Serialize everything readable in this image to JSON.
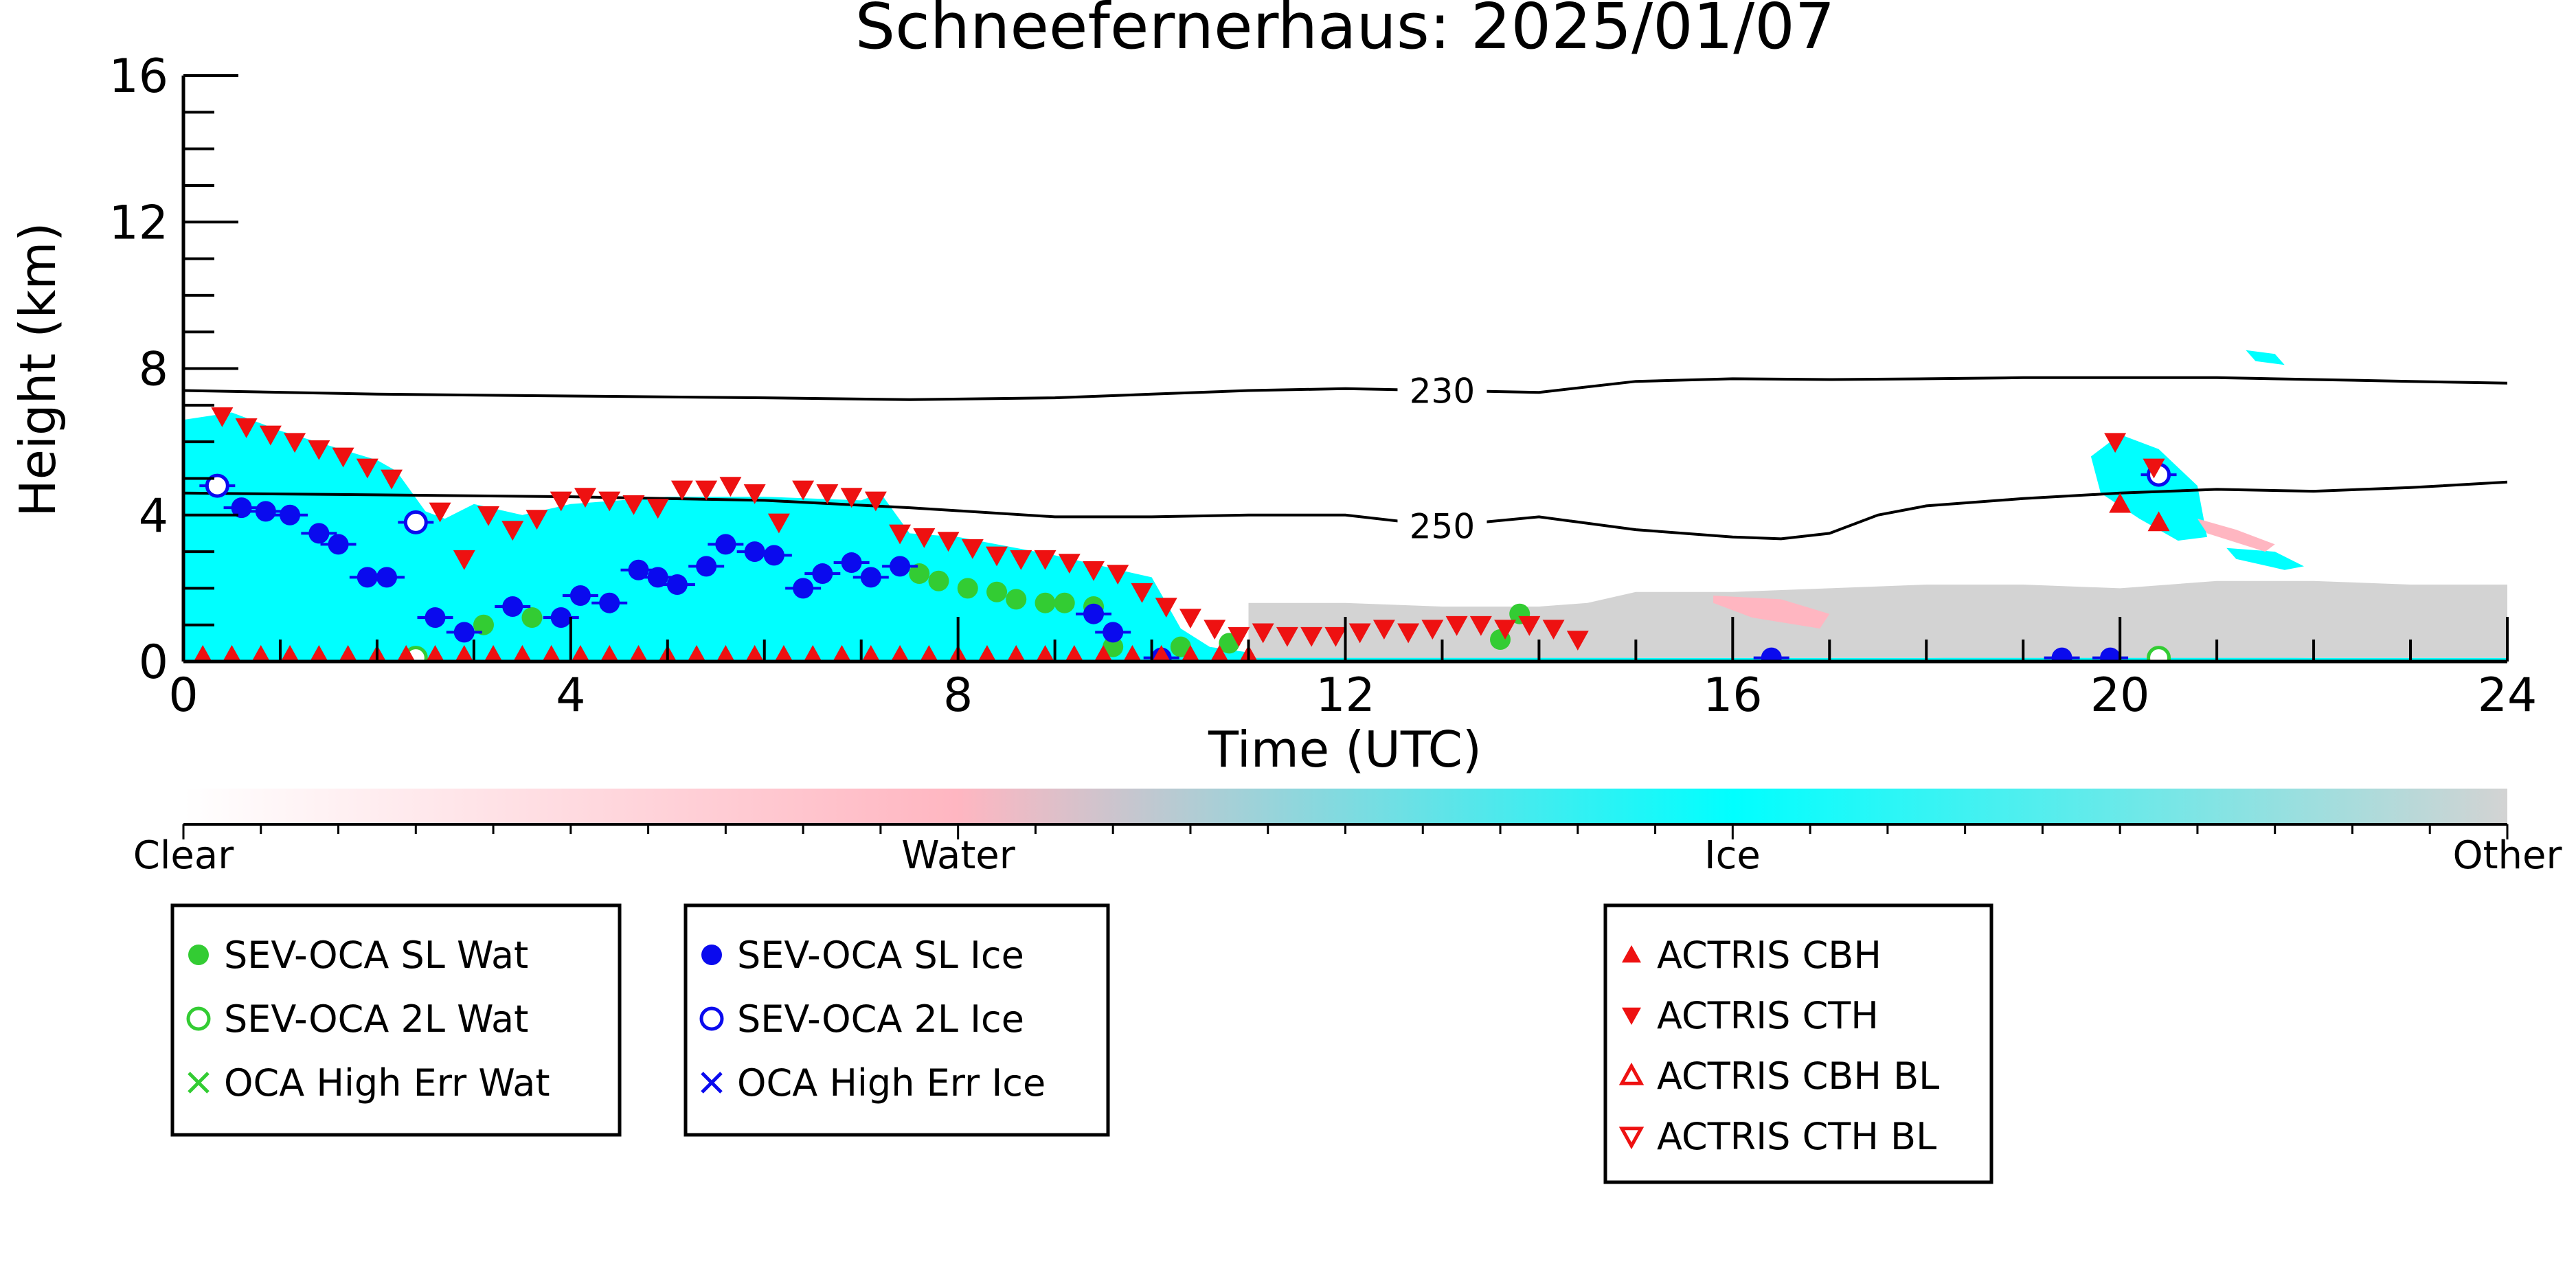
{
  "chart_data": {
    "type": "scatter",
    "title": "Schneefernerhaus: 2025/01/07",
    "xlabel": "Time (UTC)",
    "ylabel": "Height (km)",
    "xlim": [
      0,
      24
    ],
    "ylim": [
      0,
      16
    ],
    "xticks": [
      "0",
      "4",
      "8",
      "12",
      "16",
      "20",
      "24"
    ],
    "yticks": [
      "0",
      "4",
      "8",
      "12",
      "16"
    ],
    "colorbar": {
      "labels": [
        "Clear",
        "Water",
        "Ice",
        "Other"
      ],
      "colors": [
        "#ffffff",
        "#ffb6c1",
        "#00ffff",
        "#d3d3d3"
      ]
    },
    "contours": [
      {
        "label": "230",
        "x": [
          0,
          2,
          4,
          6,
          7.5,
          9,
          10,
          11,
          12,
          13,
          14,
          15,
          16,
          17,
          18,
          19,
          20,
          21,
          22,
          23,
          24
        ],
        "y": [
          7.4,
          7.3,
          7.25,
          7.2,
          7.15,
          7.2,
          7.3,
          7.4,
          7.45,
          7.4,
          7.35,
          7.65,
          7.72,
          7.7,
          7.72,
          7.75,
          7.75,
          7.75,
          7.7,
          7.65,
          7.6
        ]
      },
      {
        "label": "250",
        "x": [
          0,
          2,
          4,
          6,
          7.5,
          9,
          10,
          11,
          12,
          13,
          14,
          15,
          16,
          16.5,
          17,
          17.5,
          18,
          19,
          20,
          21,
          22,
          23,
          24
        ],
        "y": [
          4.6,
          4.55,
          4.5,
          4.4,
          4.2,
          3.95,
          3.95,
          4.0,
          4.0,
          3.7,
          3.95,
          3.6,
          3.4,
          3.35,
          3.5,
          4.0,
          4.25,
          4.45,
          4.6,
          4.7,
          4.65,
          4.75,
          4.9
        ]
      }
    ],
    "masks": [
      {
        "category": "Ice",
        "color": "#00ffff",
        "x": [
          0,
          0,
          0.5,
          1,
          1.5,
          2,
          2.2,
          2.5,
          2.7,
          3,
          3.5,
          4,
          5,
          6,
          7,
          7.2,
          7.5,
          8,
          9,
          9.5,
          10,
          10.3,
          10.6,
          11,
          12,
          13,
          14,
          14.5,
          14.5,
          15,
          16,
          18,
          20,
          22,
          24,
          24
        ],
        "y": [
          0,
          6.6,
          6.8,
          6.3,
          5.9,
          5.5,
          5.2,
          4.1,
          3.9,
          4.3,
          4.0,
          4.3,
          4.5,
          4.5,
          4.4,
          4.6,
          3.5,
          3.4,
          2.9,
          2.6,
          2.3,
          0.9,
          0.4,
          0.25,
          0.25,
          0.25,
          0.25,
          0.3,
          0.15,
          0.1,
          0.1,
          0.1,
          0.15,
          0.1,
          0.1,
          0
        ]
      },
      {
        "category": "Ice",
        "color": "#00ffff",
        "x": [
          19.7,
          20.0,
          20.4,
          20.8,
          20.9,
          20.6,
          20.2,
          19.8
        ],
        "y": [
          5.6,
          6.2,
          5.8,
          4.8,
          3.4,
          3.3,
          3.9,
          4.6
        ]
      },
      {
        "category": "Ice",
        "color": "#00ffff",
        "x": [
          21.1,
          21.6,
          21.9,
          21.7,
          21.2
        ],
        "y": [
          3.1,
          3.0,
          2.6,
          2.5,
          2.8
        ]
      },
      {
        "category": "Ice",
        "color": "#00ffff",
        "x": [
          21.3,
          21.6,
          21.7,
          21.4
        ],
        "y": [
          8.5,
          8.4,
          8.1,
          8.2
        ]
      },
      {
        "category": "Other",
        "color": "#d3d3d3",
        "x": [
          11,
          12,
          13,
          14,
          14.5,
          15,
          16,
          17,
          18,
          19,
          20,
          21,
          22,
          23,
          24,
          24,
          11
        ],
        "y": [
          1.6,
          1.6,
          1.5,
          1.5,
          1.6,
          1.9,
          1.9,
          2.0,
          2.1,
          2.1,
          2.0,
          2.2,
          2.2,
          2.1,
          2.1,
          0.1,
          0.1
        ]
      },
      {
        "category": "Water",
        "color": "#ffb6c1",
        "x": [
          15.8,
          16.5,
          17.0,
          16.9,
          16.2,
          15.8
        ],
        "y": [
          1.8,
          1.7,
          1.3,
          0.9,
          1.2,
          1.6
        ]
      },
      {
        "category": "Water",
        "color": "#ffb6c1",
        "x": [
          20.8,
          21.2,
          21.6,
          21.5,
          20.9
        ],
        "y": [
          3.9,
          3.6,
          3.2,
          3.0,
          3.5
        ]
      }
    ],
    "series": [
      {
        "name": "SEV-OCA SL Wat",
        "marker": "filled-circle",
        "color": "#33cc33",
        "x": [
          3.1,
          3.6,
          7.6,
          7.8,
          8.1,
          8.4,
          8.6,
          8.9,
          9.1,
          9.4,
          9.6,
          10.3,
          10.8,
          13.6,
          13.8
        ],
        "y": [
          1.0,
          1.2,
          2.4,
          2.2,
          2.0,
          1.9,
          1.7,
          1.6,
          1.6,
          1.5,
          0.4,
          0.4,
          0.5,
          0.6,
          1.3
        ]
      },
      {
        "name": "SEV-OCA 2L Wat",
        "marker": "open-circle",
        "color": "#33cc33",
        "x": [
          2.4,
          20.4
        ],
        "y": [
          0.1,
          0.1
        ]
      },
      {
        "name": "OCA High Err Wat",
        "marker": "x",
        "color": "#33cc33",
        "x": [],
        "y": []
      },
      {
        "name": "SEV-OCA SL Ice",
        "marker": "filled-circle",
        "color": "#0a0aee",
        "x": [
          0.6,
          0.85,
          1.1,
          1.4,
          1.6,
          1.9,
          2.1,
          2.6,
          2.9,
          3.4,
          3.9,
          4.1,
          4.4,
          4.7,
          4.9,
          5.1,
          5.4,
          5.6,
          5.9,
          6.1,
          6.4,
          6.6,
          6.9,
          7.1,
          7.4,
          9.4,
          9.6,
          10.1,
          16.4,
          19.4,
          19.9
        ],
        "y": [
          4.2,
          4.1,
          4.0,
          3.5,
          3.2,
          2.3,
          2.3,
          1.2,
          0.8,
          1.5,
          1.2,
          1.8,
          1.6,
          2.5,
          2.3,
          2.1,
          2.6,
          3.2,
          3.0,
          2.9,
          2.0,
          2.4,
          2.7,
          2.3,
          2.6,
          1.3,
          0.8,
          0.1,
          0.1,
          0.1,
          0.1
        ]
      },
      {
        "name": "SEV-OCA 2L Ice",
        "marker": "open-circle",
        "color": "#0a0aee",
        "x": [
          0.35,
          2.4,
          20.4
        ],
        "y": [
          4.8,
          3.8,
          5.1
        ]
      },
      {
        "name": "OCA High Err Ice",
        "marker": "x",
        "color": "#0a0aee",
        "x": [],
        "y": []
      },
      {
        "name": "ACTRIS CBH",
        "marker": "filled-triangle-up",
        "color": "#ee1111",
        "x": [
          0.2,
          0.5,
          0.8,
          1.1,
          1.4,
          1.7,
          2.0,
          2.3,
          2.6,
          2.9,
          3.2,
          3.5,
          3.8,
          4.1,
          4.4,
          4.7,
          5.0,
          5.3,
          5.6,
          5.9,
          6.2,
          6.5,
          6.8,
          7.1,
          7.4,
          7.7,
          8.0,
          8.3,
          8.6,
          8.9,
          9.2,
          9.5,
          9.8,
          10.1,
          10.4,
          10.7,
          11.0,
          20.0,
          20.4
        ],
        "y": [
          0.15,
          0.15,
          0.15,
          0.15,
          0.15,
          0.15,
          0.15,
          0.15,
          0.15,
          0.15,
          0.15,
          0.15,
          0.15,
          0.15,
          0.15,
          0.15,
          0.15,
          0.15,
          0.15,
          0.15,
          0.15,
          0.15,
          0.15,
          0.15,
          0.15,
          0.15,
          0.15,
          0.15,
          0.15,
          0.15,
          0.15,
          0.15,
          0.15,
          0.15,
          0.15,
          0.15,
          0.15,
          4.3,
          3.8
        ]
      },
      {
        "name": "ACTRIS CTH",
        "marker": "filled-triangle-down",
        "color": "#ee1111",
        "x": [
          0.4,
          0.65,
          0.9,
          1.15,
          1.4,
          1.65,
          1.9,
          2.15,
          2.65,
          2.9,
          3.15,
          3.4,
          3.65,
          3.9,
          4.15,
          4.4,
          4.65,
          4.9,
          5.15,
          5.4,
          5.65,
          5.9,
          6.15,
          6.4,
          6.65,
          6.9,
          7.15,
          7.4,
          7.65,
          7.9,
          8.15,
          8.4,
          8.65,
          8.9,
          9.15,
          9.4,
          9.65,
          9.9,
          10.15,
          10.4,
          10.65,
          10.9,
          11.15,
          11.4,
          11.65,
          11.9,
          12.15,
          12.4,
          12.65,
          12.9,
          13.15,
          13.4,
          13.65,
          13.9,
          14.15,
          14.4,
          19.95,
          20.35
        ],
        "y": [
          6.7,
          6.4,
          6.2,
          6.0,
          5.8,
          5.6,
          5.3,
          5.0,
          4.1,
          2.8,
          4.0,
          3.6,
          3.9,
          4.4,
          4.5,
          4.4,
          4.3,
          4.2,
          4.7,
          4.7,
          4.8,
          4.6,
          3.8,
          4.7,
          4.6,
          4.5,
          4.4,
          3.5,
          3.4,
          3.3,
          3.1,
          2.9,
          2.8,
          2.8,
          2.7,
          2.5,
          2.4,
          1.9,
          1.5,
          1.2,
          0.9,
          0.7,
          0.8,
          0.7,
          0.7,
          0.7,
          0.8,
          0.9,
          0.8,
          0.9,
          1.0,
          1.0,
          0.9,
          1.0,
          0.9,
          0.6,
          6.0,
          5.3
        ]
      },
      {
        "name": "ACTRIS CBH BL",
        "marker": "open-triangle-up",
        "color": "#ee1111",
        "x": [],
        "y": []
      },
      {
        "name": "ACTRIS CTH BL",
        "marker": "open-triangle-down",
        "color": "#ee1111",
        "x": [],
        "y": []
      }
    ],
    "legend_boxes": [
      [
        "SEV-OCA SL Wat",
        "SEV-OCA 2L Wat",
        "OCA High Err Wat"
      ],
      [
        "SEV-OCA SL Ice",
        "SEV-OCA 2L Ice",
        "OCA High Err Ice"
      ],
      [
        "ACTRIS CBH",
        "ACTRIS CTH",
        "ACTRIS CBH BL",
        "ACTRIS CTH BL"
      ]
    ]
  }
}
